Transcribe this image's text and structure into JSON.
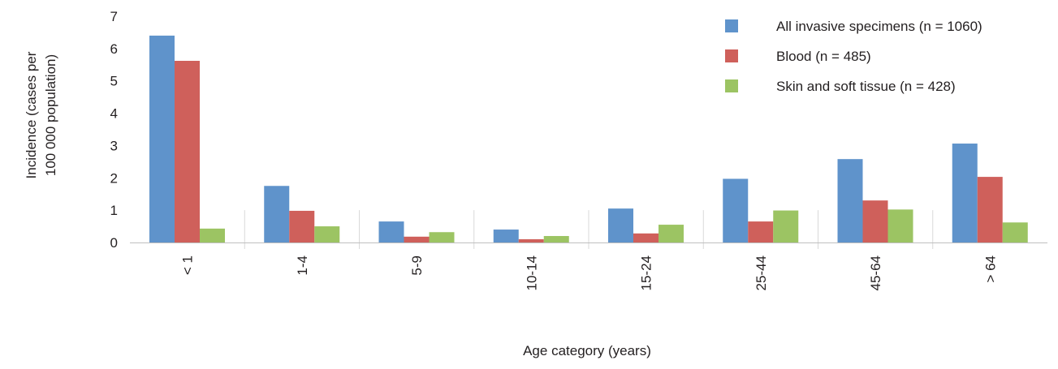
{
  "chart_data": {
    "type": "bar",
    "title": "",
    "xlabel": "Age category (years)",
    "ylabel": "Incidence (cases per 100 000 population)",
    "ylabel_lines": [
      "Incidence (cases per",
      "100 000 population)"
    ],
    "ylim": [
      0,
      7
    ],
    "yticks": [
      "0",
      "1",
      "2",
      "3",
      "4",
      "5",
      "6",
      "7"
    ],
    "categories": [
      "< 1",
      "1-4",
      "5-9",
      "10-14",
      "15-24",
      "25-44",
      "45-64",
      "> 64"
    ],
    "series": [
      {
        "name": "All invasive specimens (n = 1060)",
        "color": "#5f93cb",
        "values": [
          6.4,
          1.75,
          0.65,
          0.4,
          1.05,
          1.97,
          2.58,
          3.06
        ]
      },
      {
        "name": "Blood (n = 485)",
        "color": "#cf605b",
        "values": [
          5.62,
          0.98,
          0.18,
          0.1,
          0.28,
          0.65,
          1.3,
          2.03
        ]
      },
      {
        "name": "Skin and soft tissue (n = 428)",
        "color": "#9cc463",
        "values": [
          0.43,
          0.5,
          0.32,
          0.2,
          0.55,
          0.99,
          1.02,
          0.62
        ]
      }
    ],
    "grid": "vertical separators between categories (lower portion)",
    "legend_position": "top-right"
  }
}
